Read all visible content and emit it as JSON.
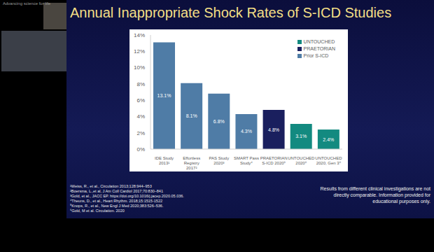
{
  "chart_data": {
    "type": "bar",
    "title": "Annual Inappropriate Shock Rates of S-ICD Studies",
    "categories": [
      "IDE Study\n2013¹",
      "Effortless\nRegistry\n2017²",
      "PAS Study\n2020³",
      "SMART Pass\nStudy⁴",
      "PRAETORIAN\nS-ICD 2020⁵",
      "UNTOUCHED\n2020⁶",
      "UNTOUCHED\n2020, Gen 3⁶"
    ],
    "series": [
      {
        "name": "UNTOUCHED",
        "color": "#138a80",
        "values": [
          null,
          null,
          null,
          null,
          null,
          3.1,
          2.4
        ],
        "value_labels": [
          null,
          null,
          null,
          null,
          null,
          "3.1%",
          "2.4%"
        ]
      },
      {
        "name": "PRAETORIAN",
        "color": "#1a1f5e",
        "values": [
          null,
          null,
          null,
          null,
          4.8,
          null,
          null
        ],
        "value_labels": [
          null,
          null,
          null,
          null,
          "4.8%",
          null,
          null
        ]
      },
      {
        "name": "Prior S-ICD",
        "color": "#4f7ca6",
        "values": [
          13.1,
          8.1,
          6.8,
          4.3,
          null,
          null,
          null
        ],
        "value_labels": [
          "13.1%",
          "8.1%",
          "6.8%",
          "4.3%",
          null,
          null,
          null
        ]
      }
    ],
    "ylim": [
      0,
      14
    ],
    "yticks": [
      {
        "value": 0,
        "label": "0%"
      },
      {
        "value": 2,
        "label": "2%"
      },
      {
        "value": 4,
        "label": "4%"
      },
      {
        "value": 6,
        "label": "6%"
      },
      {
        "value": 8,
        "label": "8%"
      },
      {
        "value": 10,
        "label": "10%"
      },
      {
        "value": 12,
        "label": "12%"
      },
      {
        "value": 14,
        "label": "14%"
      }
    ],
    "grid": false,
    "stacked": true,
    "data_labels": true,
    "legend": "upper right",
    "annotations": {
      "watermark": "Advancing science for life",
      "footnotes": [
        "¹Weiss, R., et al., Circulation 2013;128:944–953",
        "²Boersma, L.,et al, J Am Coll Cardiol 2017;70:830–841",
        "³Gold, et al., JACC EP. https://doi.org/10.1016/j.jacep.2020.05.036.",
        "⁴Theuns, D., et al., Heart Rhythm. 2018;15:1515-1522",
        "⁵Knops, R., et al., New Engl J Med 2020;383:526–536.",
        "⁶Gold, M et al. Circulation. 2020"
      ],
      "disclaimer": "Results from different clinical investigations are not directly comparable. Information provided for educational purposes only."
    }
  }
}
